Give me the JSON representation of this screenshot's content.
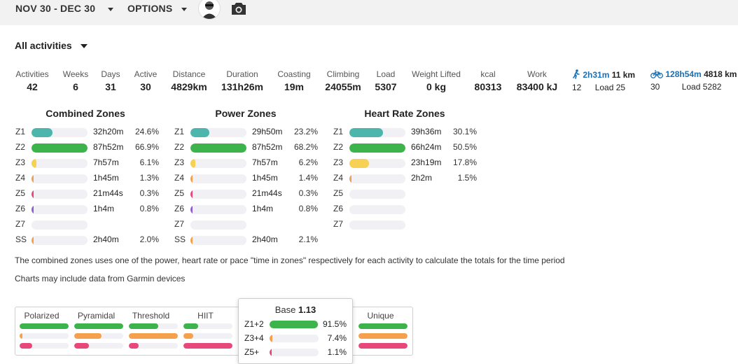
{
  "header": {
    "date_range": "NOV 30 - DEC 30",
    "options_label": "OPTIONS",
    "avatar_icon": "profile-avatar",
    "camera_icon": "camera-icon"
  },
  "filter": {
    "label": "All activities"
  },
  "stats": [
    {
      "label": "Activities",
      "value": "42"
    },
    {
      "label": "Weeks",
      "value": "6"
    },
    {
      "label": "Days",
      "value": "31"
    },
    {
      "label": "Active",
      "value": "30"
    },
    {
      "label": "Distance",
      "value": "4829km"
    },
    {
      "label": "Duration",
      "value": "131h26m"
    },
    {
      "label": "Coasting",
      "value": "19m"
    },
    {
      "label": "Climbing",
      "value": "24055m"
    },
    {
      "label": "Load",
      "value": "5307"
    },
    {
      "label": "Weight Lifted",
      "value": "0 kg"
    },
    {
      "label": "kcal",
      "value": "80313"
    },
    {
      "label": "Work",
      "value": "83400 kJ"
    }
  ],
  "sports": [
    {
      "icon": "walk-icon",
      "time": "2h31m",
      "distance": "11 km",
      "count": "12",
      "load": "Load 25"
    },
    {
      "icon": "bike-icon",
      "time": "128h54m",
      "distance": "4818 km",
      "count": "30",
      "load": "Load 5282"
    }
  ],
  "colors": {
    "z1": "#4db6ac",
    "z2": "#3cb44b",
    "z3": "#f7d154",
    "z4": "#f5a04a",
    "z5": "#e8477a",
    "z6": "#8e5fd0",
    "ss": "#f5a04a",
    "link": "#1a6fb5"
  },
  "zone_tables": [
    {
      "title": "Combined Zones",
      "rows": [
        {
          "zone": "Z1",
          "time": "32h20m",
          "pct": "24.6%",
          "fill": 0.38,
          "color": "#4db6ac"
        },
        {
          "zone": "Z2",
          "time": "87h52m",
          "pct": "66.9%",
          "fill": 1.0,
          "color": "#3cb44b"
        },
        {
          "zone": "Z3",
          "time": "7h57m",
          "pct": "6.1%",
          "fill": 0.09,
          "color": "#f7d154"
        },
        {
          "zone": "Z4",
          "time": "1h45m",
          "pct": "1.3%",
          "fill": 0.02,
          "color": "#f5a04a"
        },
        {
          "zone": "Z5",
          "time": "21m44s",
          "pct": "0.3%",
          "fill": 0.01,
          "color": "#e8477a"
        },
        {
          "zone": "Z6",
          "time": "1h4m",
          "pct": "0.8%",
          "fill": 0.015,
          "color": "#8e5fd0"
        },
        {
          "zone": "Z7",
          "time": "",
          "pct": "",
          "fill": 0,
          "color": "#e8477a"
        },
        {
          "zone": "SS",
          "time": "2h40m",
          "pct": "2.0%",
          "fill": 0.03,
          "color": "#f5a04a"
        }
      ]
    },
    {
      "title": "Power Zones",
      "rows": [
        {
          "zone": "Z1",
          "time": "29h50m",
          "pct": "23.2%",
          "fill": 0.34,
          "color": "#4db6ac"
        },
        {
          "zone": "Z2",
          "time": "87h52m",
          "pct": "68.2%",
          "fill": 1.0,
          "color": "#3cb44b"
        },
        {
          "zone": "Z3",
          "time": "7h57m",
          "pct": "6.2%",
          "fill": 0.09,
          "color": "#f7d154"
        },
        {
          "zone": "Z4",
          "time": "1h45m",
          "pct": "1.4%",
          "fill": 0.02,
          "color": "#f5a04a"
        },
        {
          "zone": "Z5",
          "time": "21m44s",
          "pct": "0.3%",
          "fill": 0.01,
          "color": "#e8477a"
        },
        {
          "zone": "Z6",
          "time": "1h4m",
          "pct": "0.8%",
          "fill": 0.015,
          "color": "#8e5fd0"
        },
        {
          "zone": "Z7",
          "time": "",
          "pct": "",
          "fill": 0,
          "color": "#e8477a"
        },
        {
          "zone": "SS",
          "time": "2h40m",
          "pct": "2.1%",
          "fill": 0.03,
          "color": "#f5a04a"
        }
      ]
    },
    {
      "title": "Heart Rate Zones",
      "rows": [
        {
          "zone": "Z1",
          "time": "39h36m",
          "pct": "30.1%",
          "fill": 0.6,
          "color": "#4db6ac"
        },
        {
          "zone": "Z2",
          "time": "66h24m",
          "pct": "50.5%",
          "fill": 1.0,
          "color": "#3cb44b"
        },
        {
          "zone": "Z3",
          "time": "23h19m",
          "pct": "17.8%",
          "fill": 0.35,
          "color": "#f7d154"
        },
        {
          "zone": "Z4",
          "time": "2h2m",
          "pct": "1.5%",
          "fill": 0.03,
          "color": "#f5a04a"
        },
        {
          "zone": "Z5",
          "time": "",
          "pct": "",
          "fill": 0,
          "color": "#e8477a"
        },
        {
          "zone": "Z6",
          "time": "",
          "pct": "",
          "fill": 0,
          "color": "#8e5fd0"
        },
        {
          "zone": "Z7",
          "time": "",
          "pct": "",
          "fill": 0,
          "color": "#e8477a"
        }
      ]
    }
  ],
  "notes": {
    "combined": "The combined zones uses one of the power, heart rate or pace \"time in zones\" respectively for each activity to calculate the totals for the time period",
    "garmin": "Charts may include data from Garmin devices"
  },
  "distribution": {
    "columns": [
      {
        "label": "Polarized",
        "bars": [
          1.0,
          0.05,
          0.25
        ]
      },
      {
        "label": "Pyramidal",
        "bars": [
          1.0,
          0.55,
          0.3
        ]
      },
      {
        "label": "Threshold",
        "bars": [
          0.6,
          1.0,
          0.2
        ]
      },
      {
        "label": "HIIT",
        "bars": [
          0.3,
          0.2,
          1.0
        ]
      },
      {
        "label": "Unique",
        "bars": [
          1.0,
          1.0,
          1.0
        ]
      }
    ]
  },
  "tooltip": {
    "title": "Base",
    "value": "1.13",
    "rows": [
      {
        "label": "Z1+2",
        "pct": "91.5%",
        "fill": 0.98,
        "color": "#3cb44b"
      },
      {
        "label": "Z3+4",
        "pct": "7.4%",
        "fill": 0.06,
        "color": "#f5a04a"
      },
      {
        "label": "Z5+",
        "pct": "1.1%",
        "fill": 0.01,
        "color": "#e8477a"
      }
    ]
  }
}
